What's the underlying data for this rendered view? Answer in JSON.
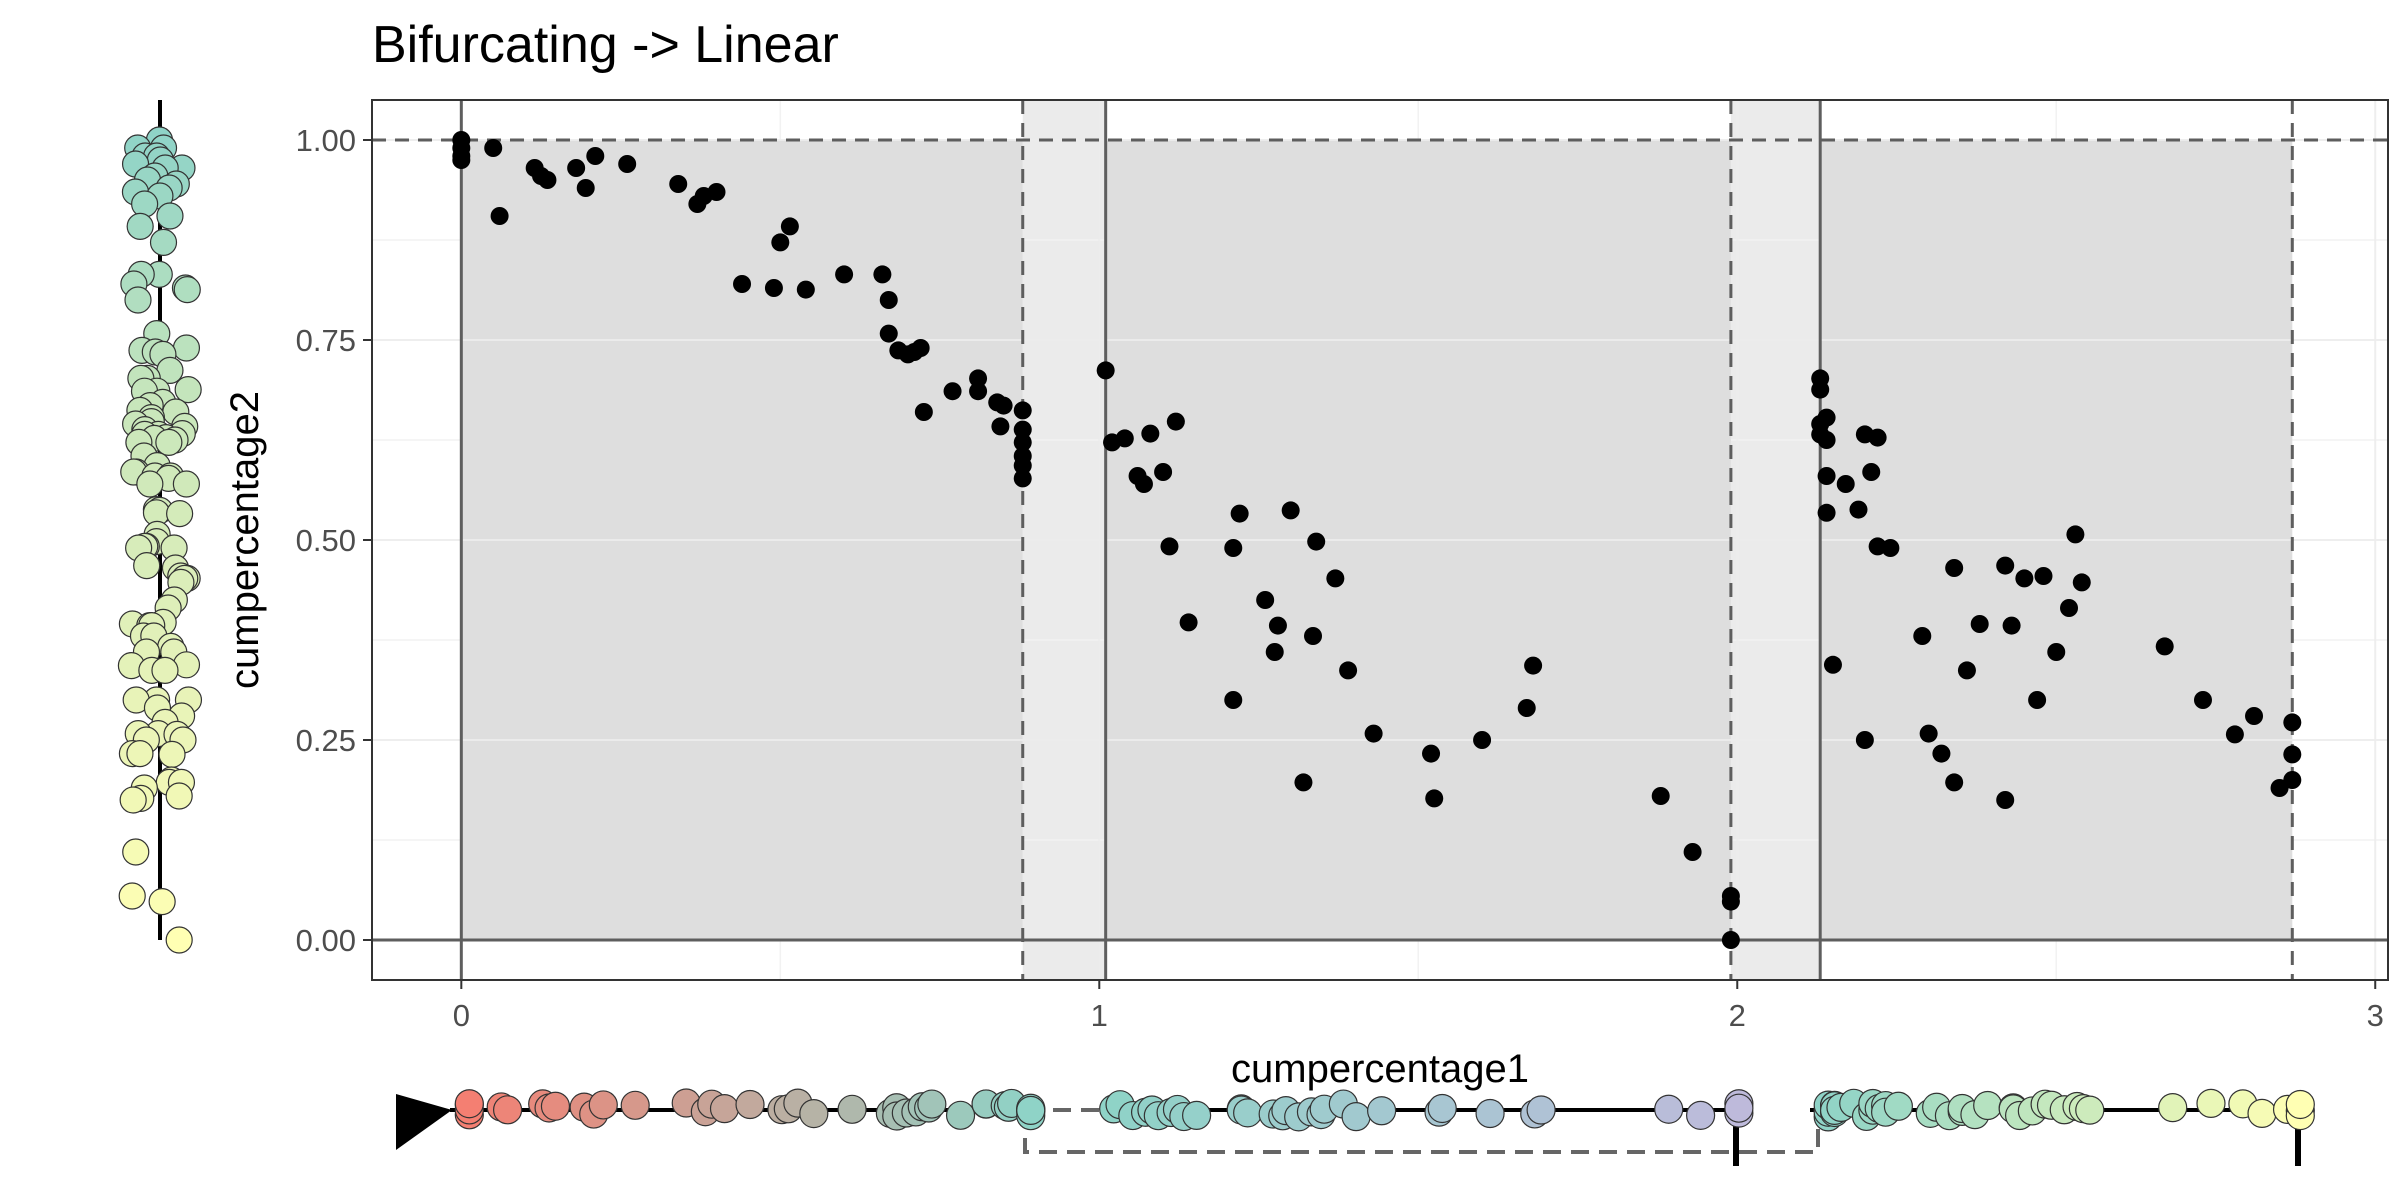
{
  "colors": {
    "panel_fill": "#dedede",
    "gap_fill": "#ebebeb",
    "grid": "#f2f2f2",
    "ref_line": "#5e5e5e",
    "point": "#000000",
    "track_colors": [
      "#f47f72",
      "#d9a48f",
      "#b4b3a7",
      "#8fd3c7",
      "#b6d7c6",
      "#c8e6bb",
      "#e5f2b9",
      "#ffffb3",
      "#bebadb"
    ]
  },
  "chart_data": {
    "type": "scatter",
    "title": "Bifurcating -> Linear",
    "xlabel": "cumpercentage1",
    "ylabel": "cumpercentage2",
    "xlim": [
      -0.14,
      3.02
    ],
    "ylim": [
      -0.05,
      1.05
    ],
    "x_ticks": [
      "0",
      "1",
      "2",
      "3"
    ],
    "x_tick_values": [
      0,
      1,
      2,
      3
    ],
    "y_ticks": [
      "0.00",
      "0.25",
      "0.50",
      "0.75",
      "1.00"
    ],
    "y_tick_values": [
      0,
      0.25,
      0.5,
      0.75,
      1.0
    ],
    "grid": true,
    "shaded_segments": [
      [
        0,
        0.88
      ],
      [
        1.01,
        1.99
      ],
      [
        2.13,
        2.87
      ]
    ],
    "solid_vlines": [
      0,
      1.01,
      2.13
    ],
    "dashed_vlines": [
      0.88,
      1.99,
      2.87
    ],
    "hlines_solid": [
      0
    ],
    "hlines_dashed": [
      1
    ],
    "points": [
      [
        0,
        1.0
      ],
      [
        0,
        0.99
      ],
      [
        0,
        0.98
      ],
      [
        0,
        0.975
      ],
      [
        0.05,
        0.99
      ],
      [
        0.06,
        0.905
      ],
      [
        0.115,
        0.965
      ],
      [
        0.125,
        0.955
      ],
      [
        0.135,
        0.95
      ],
      [
        0.18,
        0.965
      ],
      [
        0.195,
        0.94
      ],
      [
        0.21,
        0.98
      ],
      [
        0.26,
        0.97
      ],
      [
        0.34,
        0.945
      ],
      [
        0.37,
        0.92
      ],
      [
        0.38,
        0.93
      ],
      [
        0.4,
        0.935
      ],
      [
        0.44,
        0.82
      ],
      [
        0.49,
        0.815
      ],
      [
        0.5,
        0.872
      ],
      [
        0.515,
        0.892
      ],
      [
        0.54,
        0.813
      ],
      [
        0.6,
        0.832
      ],
      [
        0.66,
        0.832
      ],
      [
        0.67,
        0.8
      ],
      [
        0.67,
        0.758
      ],
      [
        0.685,
        0.737
      ],
      [
        0.7,
        0.732
      ],
      [
        0.71,
        0.735
      ],
      [
        0.72,
        0.74
      ],
      [
        0.725,
        0.66
      ],
      [
        0.77,
        0.686
      ],
      [
        0.81,
        0.702
      ],
      [
        0.81,
        0.686
      ],
      [
        0.84,
        0.672
      ],
      [
        0.845,
        0.642
      ],
      [
        0.85,
        0.668
      ],
      [
        0.88,
        0.662
      ],
      [
        0.88,
        0.638
      ],
      [
        0.88,
        0.622
      ],
      [
        0.88,
        0.605
      ],
      [
        0.88,
        0.593
      ],
      [
        0.88,
        0.577
      ],
      [
        1.01,
        0.712
      ],
      [
        1.02,
        0.622
      ],
      [
        1.04,
        0.627
      ],
      [
        1.06,
        0.58
      ],
      [
        1.07,
        0.57
      ],
      [
        1.08,
        0.633
      ],
      [
        1.1,
        0.585
      ],
      [
        1.12,
        0.648
      ],
      [
        1.11,
        0.492
      ],
      [
        1.14,
        0.397
      ],
      [
        1.21,
        0.49
      ],
      [
        1.22,
        0.533
      ],
      [
        1.21,
        0.3
      ],
      [
        1.26,
        0.425
      ],
      [
        1.28,
        0.393
      ],
      [
        1.275,
        0.36
      ],
      [
        1.3,
        0.537
      ],
      [
        1.32,
        0.197
      ],
      [
        1.335,
        0.38
      ],
      [
        1.34,
        0.498
      ],
      [
        1.37,
        0.452
      ],
      [
        1.39,
        0.337
      ],
      [
        1.43,
        0.258
      ],
      [
        1.52,
        0.233
      ],
      [
        1.525,
        0.177
      ],
      [
        1.6,
        0.25
      ],
      [
        1.67,
        0.29
      ],
      [
        1.68,
        0.343
      ],
      [
        1.88,
        0.18
      ],
      [
        1.93,
        0.11
      ],
      [
        1.99,
        0.055
      ],
      [
        1.99,
        0.048
      ],
      [
        1.99,
        0.0
      ],
      [
        2.13,
        0.702
      ],
      [
        2.13,
        0.688
      ],
      [
        2.14,
        0.653
      ],
      [
        2.13,
        0.645
      ],
      [
        2.14,
        0.625
      ],
      [
        2.13,
        0.632
      ],
      [
        2.14,
        0.534
      ],
      [
        2.14,
        0.58
      ],
      [
        2.15,
        0.344
      ],
      [
        2.17,
        0.57
      ],
      [
        2.19,
        0.538
      ],
      [
        2.2,
        0.632
      ],
      [
        2.21,
        0.585
      ],
      [
        2.22,
        0.628
      ],
      [
        2.22,
        0.492
      ],
      [
        2.24,
        0.49
      ],
      [
        2.2,
        0.25
      ],
      [
        2.29,
        0.38
      ],
      [
        2.3,
        0.258
      ],
      [
        2.32,
        0.233
      ],
      [
        2.34,
        0.197
      ],
      [
        2.34,
        0.465
      ],
      [
        2.36,
        0.337
      ],
      [
        2.38,
        0.395
      ],
      [
        2.42,
        0.468
      ],
      [
        2.43,
        0.393
      ],
      [
        2.42,
        0.175
      ],
      [
        2.45,
        0.452
      ],
      [
        2.47,
        0.3
      ],
      [
        2.48,
        0.455
      ],
      [
        2.5,
        0.36
      ],
      [
        2.52,
        0.415
      ],
      [
        2.53,
        0.507
      ],
      [
        2.54,
        0.447
      ],
      [
        2.67,
        0.367
      ],
      [
        2.73,
        0.3
      ],
      [
        2.78,
        0.257
      ],
      [
        2.81,
        0.28
      ],
      [
        2.85,
        0.19
      ],
      [
        2.87,
        0.272
      ],
      [
        2.87,
        0.232
      ],
      [
        2.87,
        0.2
      ]
    ]
  }
}
